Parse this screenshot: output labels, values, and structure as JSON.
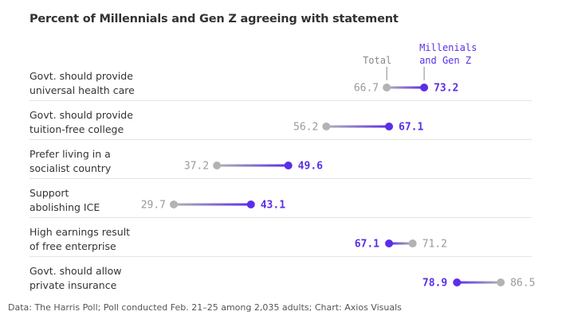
{
  "chart_data": {
    "type": "dumbbell",
    "title": "Percent of Millennials and Gen Z agreeing with statement",
    "series": [
      {
        "name": "Total",
        "color": "#b3b3b3"
      },
      {
        "name": "Millenials and Gen Z",
        "color": "#5b2ee8"
      }
    ],
    "annotations": {
      "total": "Total",
      "mgz_line1": "Millenials",
      "mgz_line2": "and Gen Z"
    },
    "rows": [
      {
        "line1": "Govt. should provide",
        "line2": "universal health care",
        "total": 66.7,
        "mgz": 73.2,
        "total_label": "66.7",
        "mgz_label": "73.2"
      },
      {
        "line1": "Govt. should provide",
        "line2": "tuition-free college",
        "total": 56.2,
        "mgz": 67.1,
        "total_label": "56.2",
        "mgz_label": "67.1"
      },
      {
        "line1": "Prefer living in a",
        "line2": "socialist country",
        "total": 37.2,
        "mgz": 49.6,
        "total_label": "37.2",
        "mgz_label": "49.6"
      },
      {
        "line1": "Support",
        "line2": "abolishing ICE",
        "total": 29.7,
        "mgz": 43.1,
        "total_label": "29.7",
        "mgz_label": "43.1"
      },
      {
        "line1": "High earnings result",
        "line2": "of free enterprise",
        "total": 71.2,
        "mgz": 67.1,
        "total_label": "71.2",
        "mgz_label": "67.1"
      },
      {
        "line1": "Govt. should allow",
        "line2": "private insurance",
        "total": 86.5,
        "mgz": 78.9,
        "total_label": "86.5",
        "mgz_label": "78.9"
      }
    ]
  },
  "source": "Data: The Harris Poll; Poll conducted Feb. 21–25 among 2,035 adults; Chart: Axios Visuals"
}
